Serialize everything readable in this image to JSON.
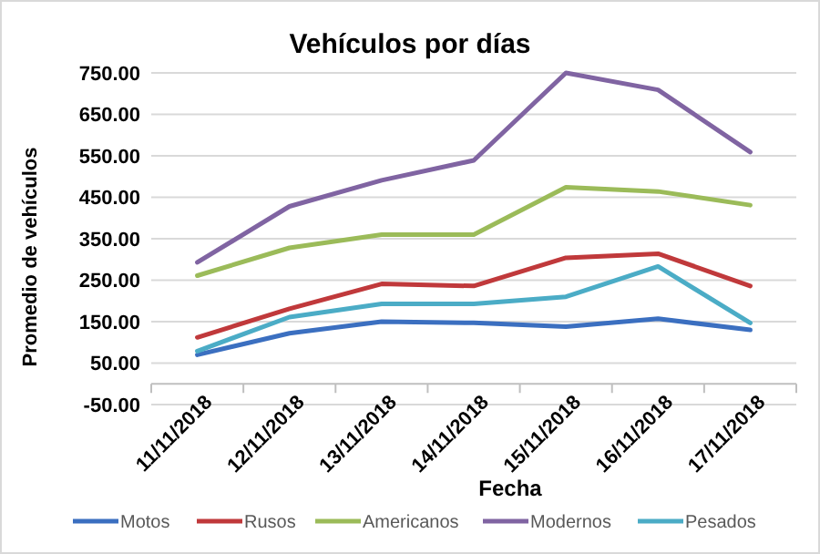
{
  "chart_data": {
    "type": "line",
    "title": "Vehículos por días",
    "xlabel": "Fecha",
    "ylabel": "Promedio de vehículos",
    "categories": [
      "11/11/2018",
      "12/11/2018",
      "13/11/2018",
      "14/11/2018",
      "15/11/2018",
      "16/11/2018",
      "17/11/2018"
    ],
    "ylim": [
      -50,
      750
    ],
    "yticks": [
      {
        "value": -50,
        "label": "-50.00"
      },
      {
        "value": 50,
        "label": "50.00"
      },
      {
        "value": 150,
        "label": "150.00"
      },
      {
        "value": 250,
        "label": "250.00"
      },
      {
        "value": 350,
        "label": "350.00"
      },
      {
        "value": 450,
        "label": "450.00"
      },
      {
        "value": 550,
        "label": "550.00"
      },
      {
        "value": 650,
        "label": "650.00"
      },
      {
        "value": 750,
        "label": "750.00"
      }
    ],
    "grid": "y",
    "legend": "bottom",
    "marker": "none",
    "line_style": "solid",
    "series": [
      {
        "name": "Motos",
        "color": "#3b6fc0",
        "values": [
          70,
          122,
          150,
          147,
          138,
          157,
          130
        ]
      },
      {
        "name": "Rusos",
        "color": "#c0393b",
        "values": [
          112,
          181,
          241,
          236,
          304,
          314,
          236
        ]
      },
      {
        "name": "Americanos",
        "color": "#9bbb59",
        "values": [
          261,
          328,
          360,
          360,
          474,
          464,
          431
        ]
      },
      {
        "name": "Modernos",
        "color": "#8064a2",
        "values": [
          293,
          428,
          491,
          539,
          750,
          709,
          559
        ]
      },
      {
        "name": "Pesados",
        "color": "#4bacc6",
        "values": [
          79,
          161,
          193,
          193,
          210,
          283,
          147
        ]
      }
    ]
  }
}
